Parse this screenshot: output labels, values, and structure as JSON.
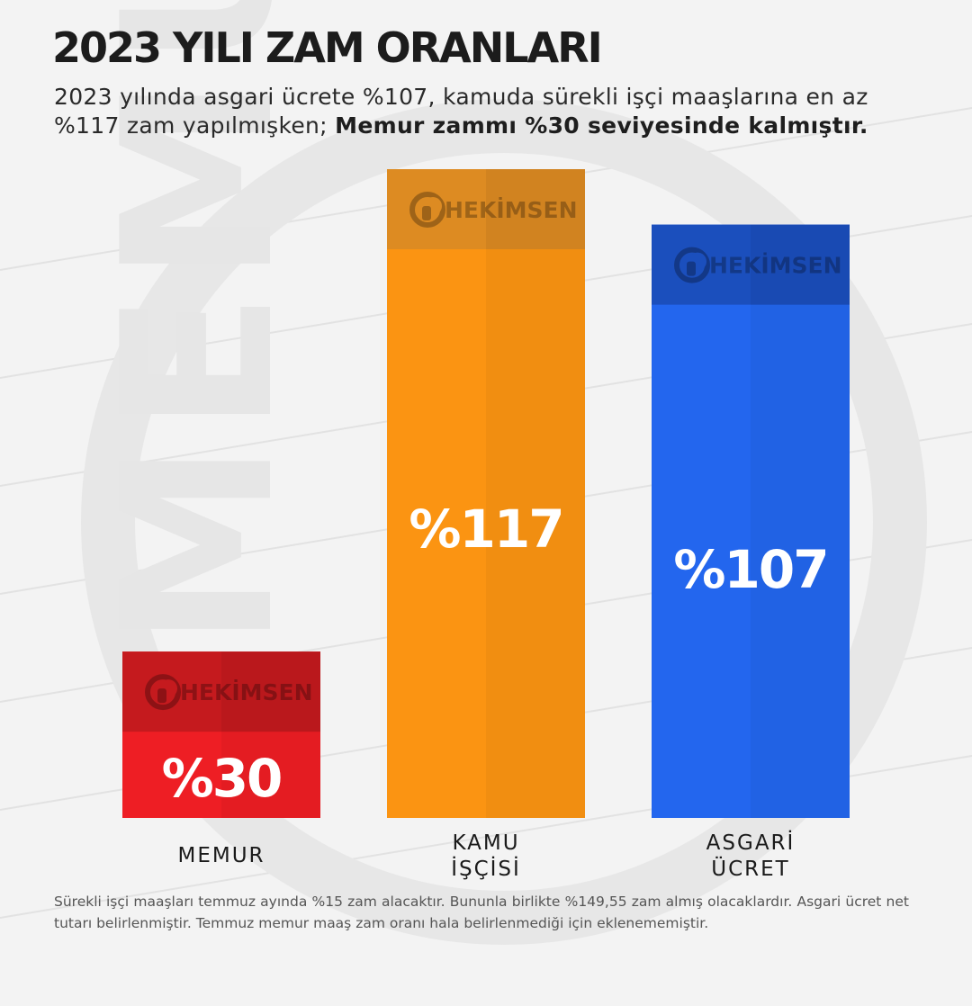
{
  "header": {
    "title": "2023 YILI ZAM ORANLARI",
    "subtitle_plain": "2023 yılında asgari ücrete %107, kamuda sürekli işçi maaşlarına en az %117 zam yapılmışken; ",
    "subtitle_bold": "Memur zammı %30 seviyesinde kalmıştır."
  },
  "watermark": {
    "logo_text": "HEKİMSEN",
    "background_word": "MEMUR"
  },
  "chart_data": {
    "type": "bar",
    "categories": [
      "MEMUR",
      "KAMU\nİŞÇİSİ",
      "ASGARİ\nÜCRET"
    ],
    "category_lines": [
      [
        "MEMUR"
      ],
      [
        "KAMU",
        "İŞÇİSİ"
      ],
      [
        "ASGARİ",
        "ÜCRET"
      ]
    ],
    "values": [
      30,
      117,
      107
    ],
    "data_labels": [
      "%30",
      "%117",
      "%107"
    ],
    "colors": [
      "#ee1e24",
      "#fb9412",
      "#2366ee"
    ],
    "band_colors": [
      "#c51a1e",
      "#dd8b22",
      "#1b4fbd"
    ],
    "title": "2023 YILI ZAM ORANLARI",
    "xlabel": "",
    "ylabel": "",
    "ylim": [
      0,
      117
    ],
    "grid": false,
    "legend": "none"
  },
  "footnote": "Sürekli işçi maaşları temmuz ayında %15 zam alacaktır. Bununla birlikte %149,55 zam almış olacaklardır. Asgari ücret net tutarı belirlenmiştir. Temmuz memur maaş zam oranı hala belirlenmediği için eklenememiştir."
}
